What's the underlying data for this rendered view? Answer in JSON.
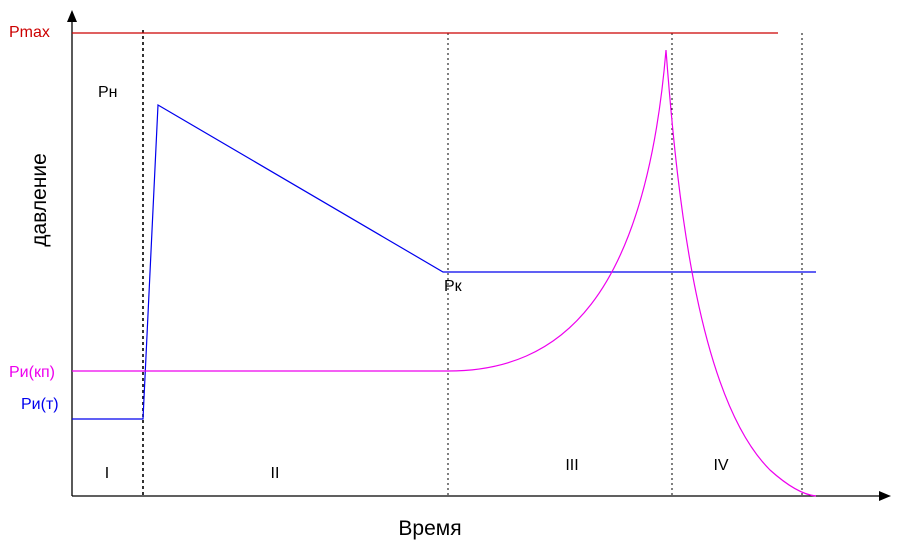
{
  "axes": {
    "x_title": "Время",
    "y_title": "давление"
  },
  "y_labels": {
    "pmax": "Pmax",
    "pi_kp": "Pи(кп)",
    "pi_t": "Pи(т)"
  },
  "point_labels": {
    "pn": "Pн",
    "pk": "Pк"
  },
  "stages": [
    "I",
    "II",
    "III",
    "IV"
  ],
  "colors": {
    "pmax": "#cc0000",
    "pressure_line": "#0000ee",
    "pi_curve": "#ee00ee",
    "axis": "#000000",
    "divider": "#000000"
  }
}
